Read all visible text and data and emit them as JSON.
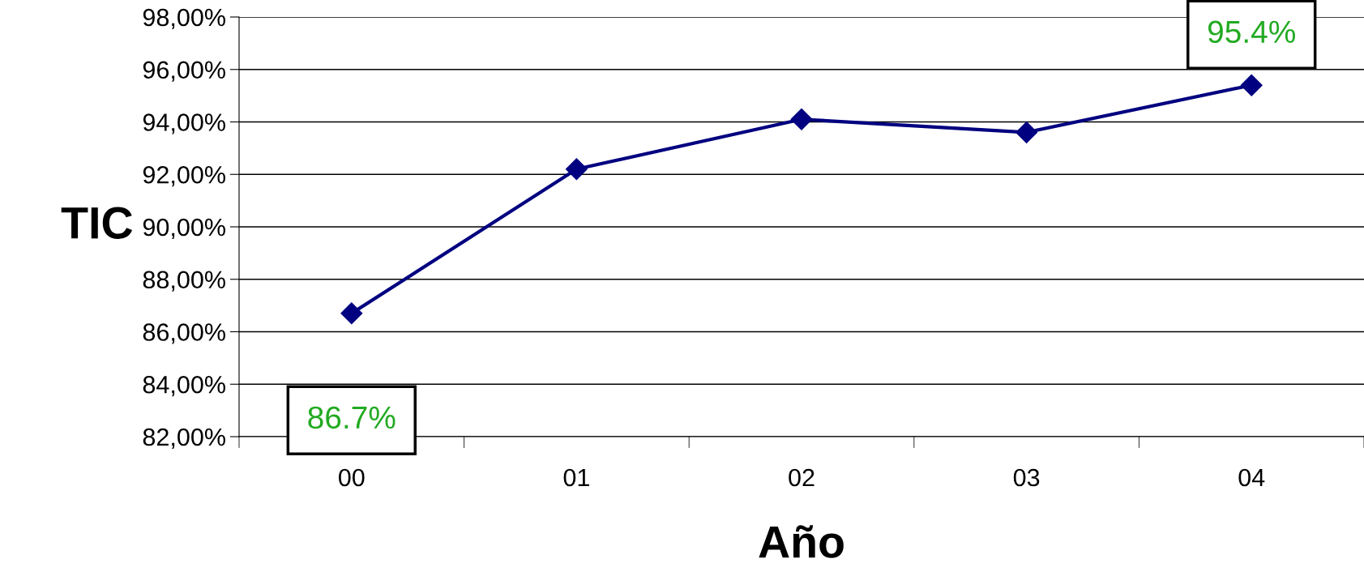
{
  "chart_data": {
    "type": "line",
    "xlabel": "Año",
    "ylabel": "TIC",
    "categories": [
      "00",
      "01",
      "02",
      "03",
      "04"
    ],
    "series": [
      {
        "color": "#000080",
        "values": [
          86.7,
          92.2,
          94.1,
          93.6,
          95.4
        ]
      }
    ],
    "ylim": [
      82,
      98
    ],
    "yticks": [
      {
        "value": 82,
        "label": "82,00%"
      },
      {
        "value": 84,
        "label": "84,00%"
      },
      {
        "value": 86,
        "label": "86,00%"
      },
      {
        "value": 88,
        "label": "88,00%"
      },
      {
        "value": 90,
        "label": "90,00%"
      },
      {
        "value": 92,
        "label": "92,00%"
      },
      {
        "value": 94,
        "label": "94,00%"
      },
      {
        "value": 96,
        "label": "96,00%"
      },
      {
        "value": 98,
        "label": "98,00%"
      }
    ],
    "grid": "y",
    "marker": "diamond",
    "line_style": "solid",
    "annotations": [
      {
        "text": "86.7%",
        "x": "00",
        "y": 86.7
      },
      {
        "text": "95.4%",
        "x": "04",
        "y": 95.4
      }
    ]
  }
}
